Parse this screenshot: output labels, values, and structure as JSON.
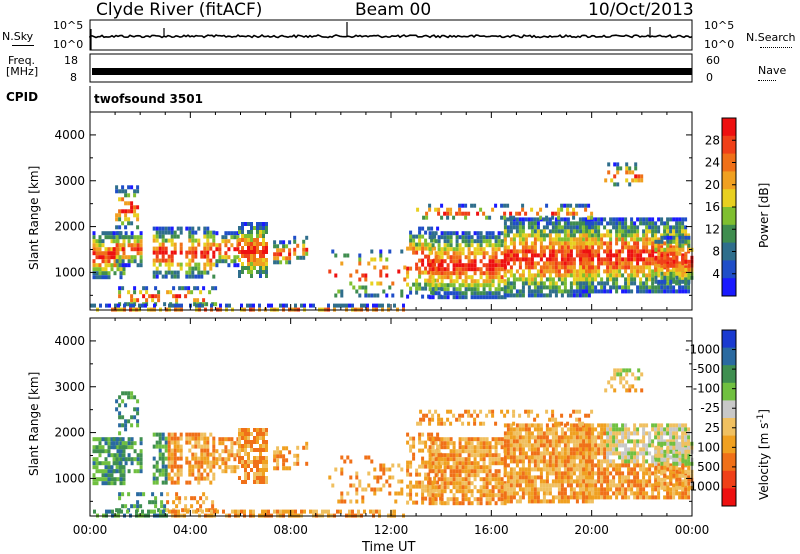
{
  "header": {
    "station": "Clyde River (fitACF)",
    "beam": "Beam 00",
    "date": "10/Oct/2013"
  },
  "top_panels": {
    "nsky_label": "N.Sky",
    "nsky_top": "10^5",
    "nsky_bottom": "10^0",
    "nsearch_top": "10^5",
    "nsearch_bottom": "10^0",
    "nsearch_label": "N.Search",
    "freq_label_line1": "Freq.",
    "freq_label_line2": "[MHz]",
    "freq_top": "18",
    "freq_bottom": "8",
    "nave_top": "60",
    "nave_bottom": "0",
    "nave_label": "Nave",
    "cpid_label": "CPID",
    "cpid_value": "twofsound 3501"
  },
  "chart_data": [
    {
      "type": "heatmap",
      "name": "power",
      "ylabel": "Slant Range [km]",
      "xlabel": "",
      "yticks": [
        1000,
        2000,
        3000,
        4000
      ],
      "ylim": [
        180,
        4500
      ],
      "colorbar": {
        "label": "Power [dB]",
        "tick_labels": [
          "4",
          "8",
          "12",
          "16",
          "20",
          "24",
          "28"
        ],
        "colors": [
          "#1a1aff",
          "#1f4ec8",
          "#2f6e8c",
          "#3f8d4f",
          "#7fbf30",
          "#e8d020",
          "#f0a020",
          "#f07018",
          "#f04018",
          "#ee1010"
        ]
      }
    },
    {
      "type": "heatmap",
      "name": "velocity",
      "ylabel": "Slant Range [km]",
      "xlabel": "Time UT",
      "xticks": [
        "00:00",
        "04:00",
        "08:00",
        "12:00",
        "16:00",
        "20:00",
        "00:00"
      ],
      "xlim_hours": [
        0,
        24
      ],
      "yticks": [
        1000,
        2000,
        3000,
        4000
      ],
      "ylim": [
        180,
        4500
      ],
      "colorbar": {
        "label": "Velocity [m s^-1]",
        "tick_labels": [
          "1000",
          "500",
          "100",
          "25",
          "-25",
          "-100",
          "-500",
          "-1000"
        ],
        "colors": [
          "#1a3ad0",
          "#2a6aa0",
          "#3f8f50",
          "#70c040",
          "#c8c8c8",
          "#f0c060",
          "#f0a020",
          "#f07018",
          "#f04018",
          "#ee1010"
        ]
      }
    }
  ]
}
